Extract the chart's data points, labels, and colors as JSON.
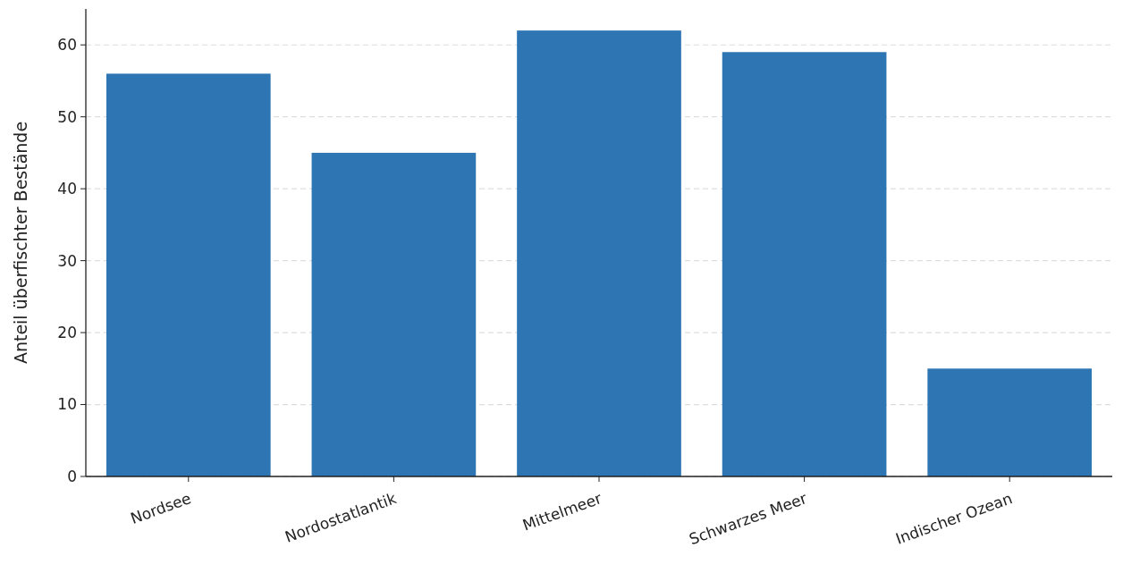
{
  "chart_data": {
    "type": "bar",
    "ylabel": "Anteil überfischter Bestände",
    "categories": [
      "Nordsee",
      "Nordostatlantik",
      "Mittelmeer",
      "Schwarzes Meer",
      "Indischer Ozean"
    ],
    "values": [
      56,
      45,
      62,
      59,
      15
    ],
    "color": "#2e75b4",
    "ylim": [
      0,
      65
    ],
    "yticks": [
      0,
      10,
      20,
      30,
      40,
      50,
      60
    ],
    "grid": "y"
  }
}
